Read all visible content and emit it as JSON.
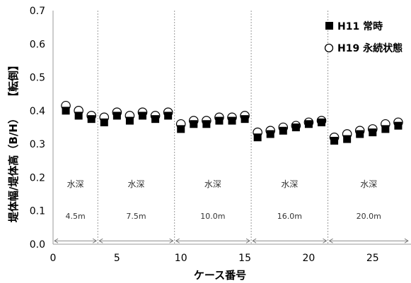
{
  "chart_data": {
    "type": "scatter",
    "xlabel": "ケース番号",
    "ylabel": "堤体幅/堤体高（B/H）",
    "ylabel_tag": "【転倒】",
    "xlim": [
      0,
      28
    ],
    "ylim": [
      0,
      0.7
    ],
    "xticks": [
      0,
      5,
      10,
      15,
      20,
      25
    ],
    "yticks": [
      "0.0",
      "0.1",
      "0.2",
      "0.3",
      "0.4",
      "0.5",
      "0.6",
      "0.7"
    ],
    "grid": false,
    "legend_position": "top-right",
    "series": [
      {
        "name": "H11 常時",
        "marker": "filled-square",
        "color": "#000000",
        "x": [
          1,
          2,
          3,
          4,
          5,
          6,
          7,
          8,
          9,
          10,
          11,
          12,
          13,
          14,
          15,
          16,
          17,
          18,
          19,
          20,
          21,
          22,
          23,
          24,
          25,
          26,
          27
        ],
        "y": [
          0.4,
          0.385,
          0.375,
          0.365,
          0.385,
          0.37,
          0.385,
          0.375,
          0.385,
          0.345,
          0.36,
          0.36,
          0.37,
          0.37,
          0.375,
          0.32,
          0.33,
          0.34,
          0.35,
          0.36,
          0.365,
          0.31,
          0.315,
          0.33,
          0.335,
          0.345,
          0.355
        ]
      },
      {
        "name": "H19 永続状態",
        "marker": "open-circle",
        "color": "#000000",
        "x": [
          1,
          2,
          3,
          4,
          5,
          6,
          7,
          8,
          9,
          10,
          11,
          12,
          13,
          14,
          15,
          16,
          17,
          18,
          19,
          20,
          21,
          22,
          23,
          24,
          25,
          26,
          27
        ],
        "y": [
          0.415,
          0.4,
          0.385,
          0.38,
          0.395,
          0.385,
          0.395,
          0.385,
          0.395,
          0.36,
          0.37,
          0.37,
          0.38,
          0.38,
          0.385,
          0.335,
          0.34,
          0.35,
          0.355,
          0.365,
          0.37,
          0.32,
          0.33,
          0.34,
          0.345,
          0.36,
          0.365
        ]
      }
    ],
    "segments": [
      {
        "label": "水深",
        "depth": "4.5m",
        "from": 0,
        "to": 3.5
      },
      {
        "label": "水深",
        "depth": "7.5m",
        "from": 3.5,
        "to": 9.5
      },
      {
        "label": "水深",
        "depth": "10.0m",
        "from": 9.5,
        "to": 15.5
      },
      {
        "label": "水深",
        "depth": "16.0m",
        "from": 15.5,
        "to": 21.5
      },
      {
        "label": "水深",
        "depth": "20.0m",
        "from": 21.5,
        "to": 28
      }
    ]
  }
}
